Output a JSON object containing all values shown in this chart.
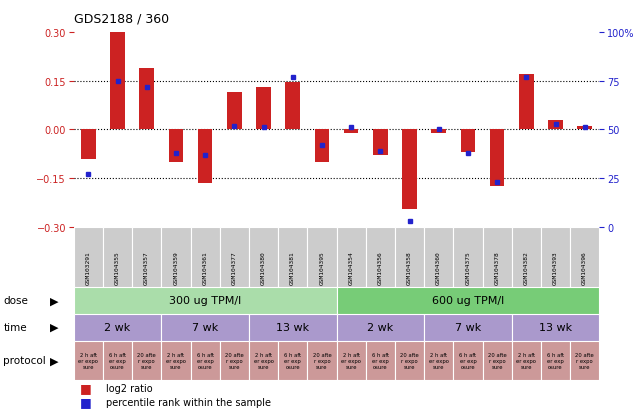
{
  "title": "GDS2188 / 360",
  "samples": [
    "GSM103291",
    "GSM104355",
    "GSM104357",
    "GSM104359",
    "GSM104361",
    "GSM104377",
    "GSM104380",
    "GSM104381",
    "GSM104395",
    "GSM104354",
    "GSM104356",
    "GSM104358",
    "GSM104360",
    "GSM104375",
    "GSM104378",
    "GSM104382",
    "GSM104393",
    "GSM104396"
  ],
  "log2_ratio": [
    -0.09,
    0.3,
    0.19,
    -0.1,
    -0.165,
    0.115,
    0.13,
    0.145,
    -0.1,
    -0.01,
    -0.08,
    -0.245,
    -0.01,
    -0.07,
    -0.175,
    0.17,
    0.03,
    0.01
  ],
  "percentile": [
    27,
    75,
    72,
    38,
    37,
    52,
    51,
    77,
    42,
    51,
    39,
    3,
    50,
    38,
    23,
    77,
    53,
    51
  ],
  "bar_color": "#cc2222",
  "dot_color": "#2222cc",
  "ylim_left": [
    -0.3,
    0.3
  ],
  "ylim_right": [
    0,
    100
  ],
  "yticks_left": [
    -0.3,
    -0.15,
    0.0,
    0.15,
    0.3
  ],
  "yticks_right": [
    0,
    25,
    50,
    75,
    100
  ],
  "hlines": [
    -0.15,
    0.0,
    0.15
  ],
  "dose_colors": [
    "#aaddaa",
    "#77cc77"
  ],
  "dose_labels": [
    "300 ug TPM/l",
    "600 ug TPM/l"
  ],
  "time_color": "#aa99cc",
  "time_labels": [
    "2 wk",
    "7 wk",
    "13 wk",
    "2 wk",
    "7 wk",
    "13 wk"
  ],
  "protocol_color": "#cc9999",
  "protocol_labels": [
    "2 h afte\nr expo\nosure",
    "6 h aft\ner exp\nosure",
    "20 afte\nr expo\nsure"
  ],
  "bg_color": "#ffffff",
  "sample_bg": "#cccccc",
  "legend_items": [
    "log2 ratio",
    "percentile rank within the sample"
  ]
}
